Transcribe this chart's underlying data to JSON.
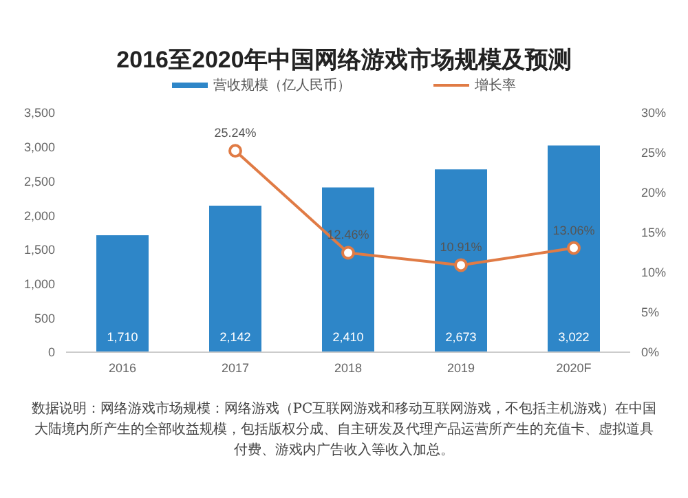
{
  "chart_data": {
    "type": "bar",
    "title": "2016至2020年中国网络游戏市场规模及预测",
    "categories": [
      "2016",
      "2017",
      "2018",
      "2019",
      "2020F"
    ],
    "series": [
      {
        "name": "营收规模（亿人民币）",
        "color": "#2e86c8",
        "values": [
          1710,
          2142,
          2410,
          2673,
          3022
        ],
        "value_labels": [
          "1,710",
          "2,142",
          "2,410",
          "2,673",
          "3,022"
        ]
      },
      {
        "name": "增长率",
        "type": "line",
        "axis": "y2",
        "color": "#e07b45",
        "values": [
          null,
          25.24,
          12.46,
          10.91,
          13.06
        ],
        "value_labels": [
          null,
          "25.24%",
          "12.46%",
          "10.91%",
          "13.06%"
        ],
        "marker": "circle"
      }
    ],
    "ylim": [
      0,
      3500
    ],
    "yticks": [
      0,
      {
        "value": 500,
        "label": "500"
      },
      {
        "value": 1000,
        "label": "1,000"
      },
      {
        "value": 1500,
        "label": "1,500"
      },
      {
        "value": 2000,
        "label": "2,000"
      },
      {
        "value": 2500,
        "label": "2,500"
      },
      {
        "value": 3000,
        "label": "3,000"
      },
      {
        "value": 3500,
        "label": "3,500"
      }
    ],
    "y2lim": [
      0,
      30
    ],
    "y2ticks": [
      {
        "value": 0,
        "label": "0%"
      },
      {
        "value": 5,
        "label": "5%"
      },
      {
        "value": 10,
        "label": "10%"
      },
      {
        "value": 15,
        "label": "15%"
      },
      {
        "value": 20,
        "label": "20%"
      },
      {
        "value": 25,
        "label": "25%"
      },
      {
        "value": 30,
        "label": "30%"
      }
    ],
    "legend": "top",
    "grid": false,
    "annotations": [
      "数据说明：网络游戏市场规模：网络游戏（PC互联网游戏和移动互联网游戏，不包括主机游戏）在中国大陆境内所产生的全部收益规模，包括版权分成、自主研发及代理产品运营所产生的充值卡、虚拟道具付费、游戏内广告收入等收入加总。"
    ]
  }
}
